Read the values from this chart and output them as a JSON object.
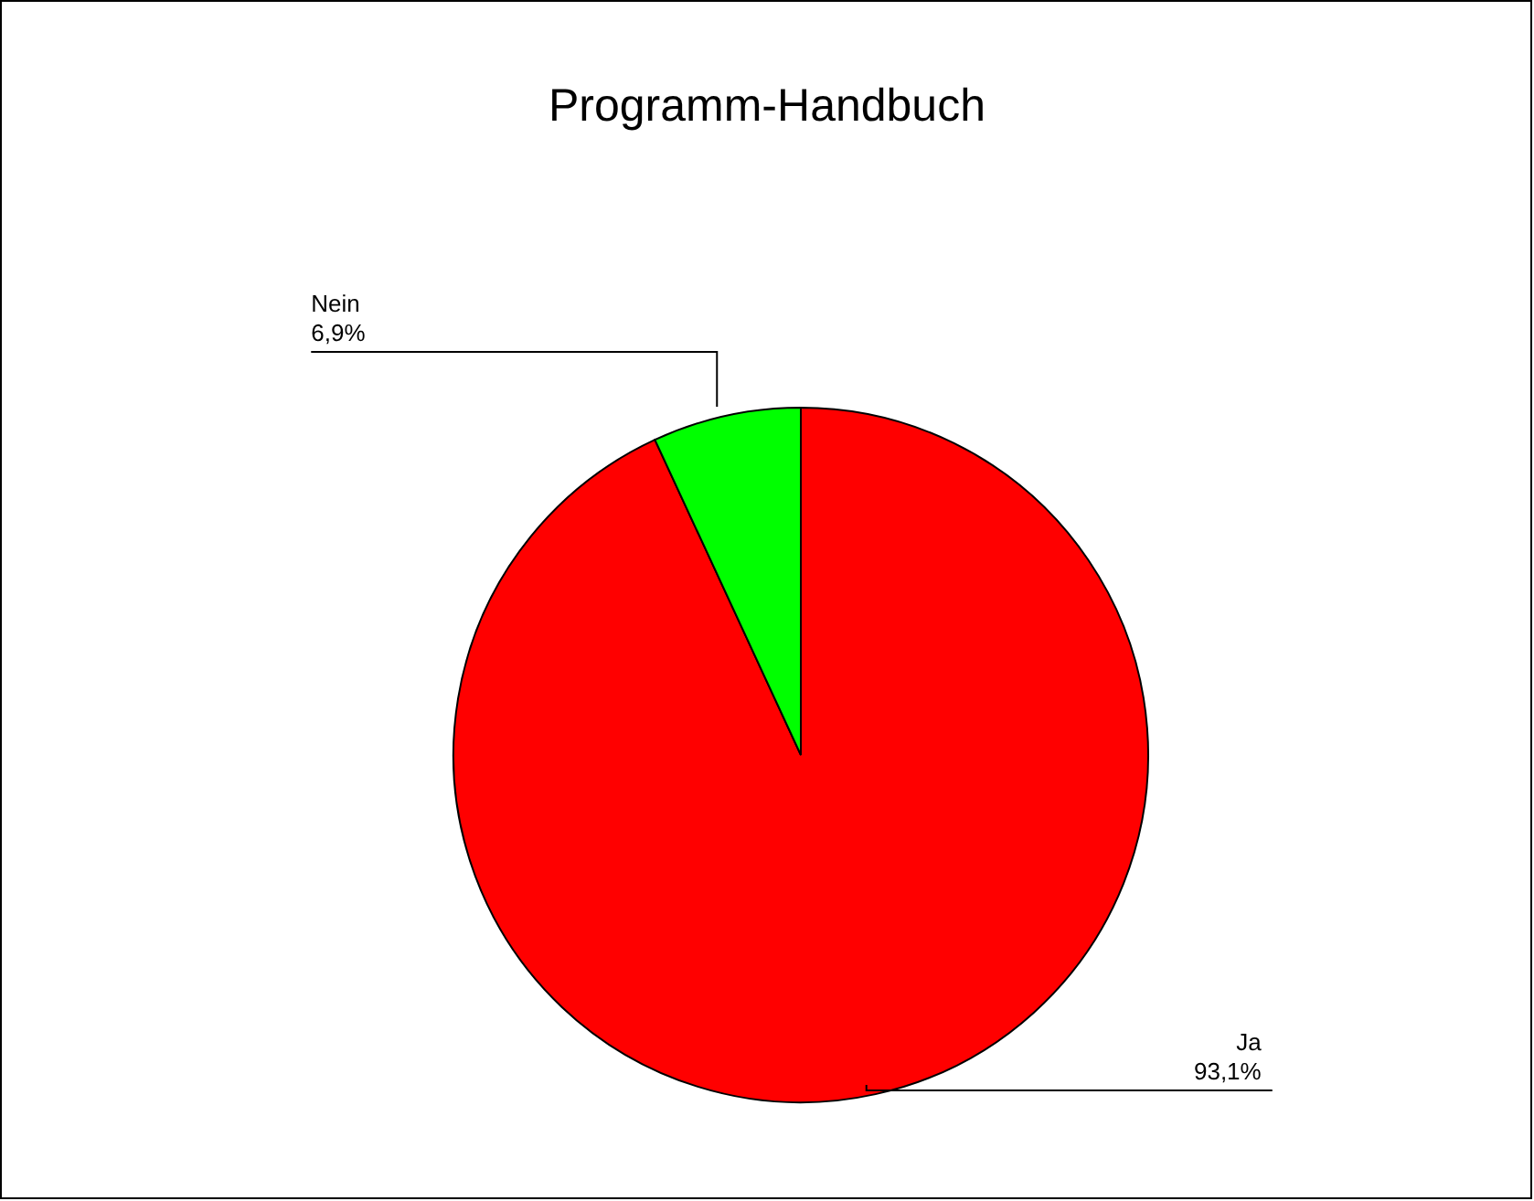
{
  "chart_data": {
    "type": "pie",
    "title": "Programm-Handbuch",
    "categories": [
      "Ja",
      "Nein"
    ],
    "values": [
      93.1,
      6.9
    ],
    "colors": [
      "#ff0000",
      "#00ff00"
    ],
    "value_labels": [
      "93,1%",
      "6,9%"
    ]
  }
}
